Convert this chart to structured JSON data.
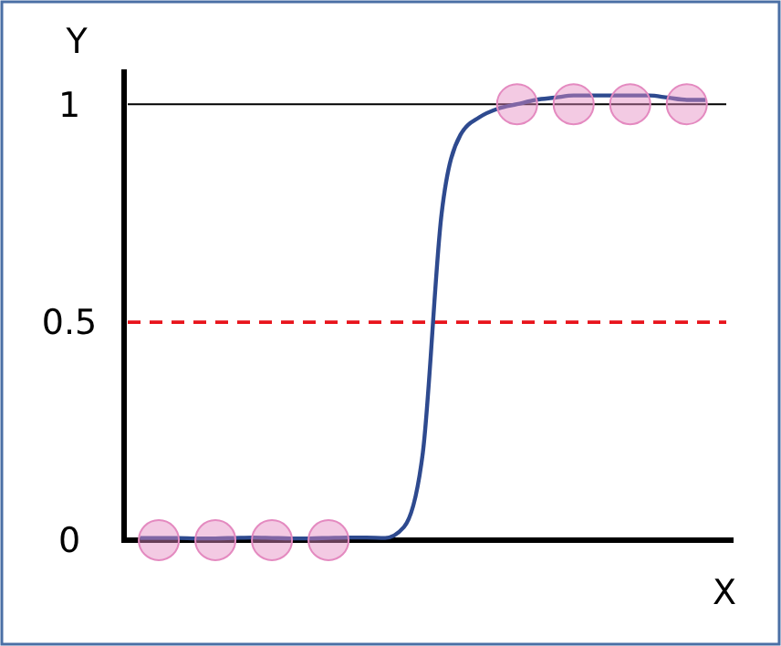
{
  "chart_data": {
    "type": "line",
    "xlabel": "X",
    "ylabel": "Y",
    "categories": [
      null,
      null,
      null,
      null,
      null,
      null,
      null,
      null,
      null,
      null,
      null,
      null,
      null,
      null,
      null,
      null,
      null,
      null,
      null,
      null,
      null,
      null,
      null,
      null,
      null,
      null,
      null,
      null,
      null,
      null,
      null
    ],
    "ylim": [
      0,
      1.08
    ],
    "yticks": [
      0,
      0.5,
      1
    ],
    "tick_labels": "y",
    "series": [
      {
        "color": "#2e4a8f",
        "marker": "none",
        "values": [
          0.005,
          0.005,
          0.005,
          0.004,
          0.004,
          0.005,
          0.006,
          0.005,
          0.004,
          0.004,
          0.005,
          0.006,
          0.006,
          0.005,
          0.03,
          0.2,
          0.75,
          0.93,
          0.97,
          0.99,
          1.0,
          1.01,
          1.015,
          1.02,
          1.02,
          1.02,
          1.02,
          1.02,
          1.015,
          1.01,
          1.01
        ]
      },
      {
        "type": "scatter",
        "color": "#e48ac0",
        "marker": "circle",
        "values": [
          null,
          0,
          null,
          null,
          0,
          null,
          null,
          0,
          null,
          null,
          0,
          null,
          null,
          null,
          null,
          null,
          null,
          null,
          null,
          null,
          1,
          null,
          null,
          1,
          null,
          null,
          1,
          null,
          null,
          1,
          null
        ]
      }
    ],
    "ref_lines": [
      {
        "axis": "y",
        "value": 1,
        "color": "#000000",
        "line_style": "solid"
      },
      {
        "axis": "y",
        "value": 0.5,
        "color": "#e8141c",
        "line_style": "dashed"
      }
    ]
  }
}
